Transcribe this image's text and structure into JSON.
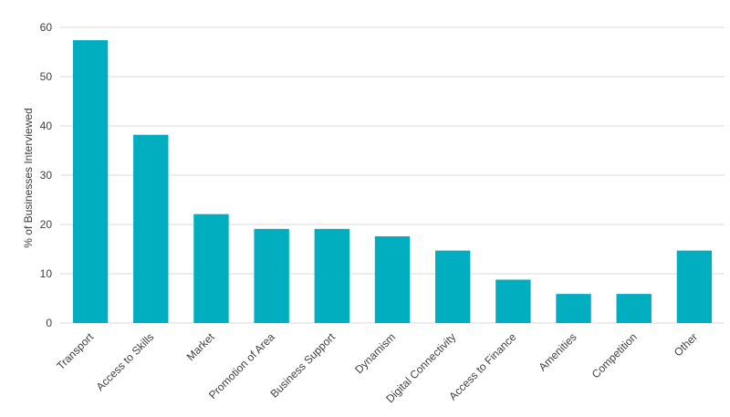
{
  "chart_data": {
    "type": "bar",
    "categories": [
      "Transport",
      "Access to Skills",
      "Market",
      "Promotion of Area",
      "Business Support",
      "Dynamism",
      "Digital Connectivity",
      "Access to Finance",
      "Amenities",
      "Competition",
      "Other"
    ],
    "values": [
      57.4,
      38.2,
      22.1,
      19.1,
      19.1,
      17.6,
      14.7,
      8.8,
      5.9,
      5.9,
      14.7
    ],
    "title": "",
    "xlabel": "",
    "ylabel": "% of Businesses Interviewed",
    "ylim": [
      0,
      60
    ],
    "yticks": [
      0,
      10,
      20,
      30,
      40,
      50,
      60
    ],
    "grid": true,
    "legend": "none",
    "bar_color": "#00aebf"
  }
}
